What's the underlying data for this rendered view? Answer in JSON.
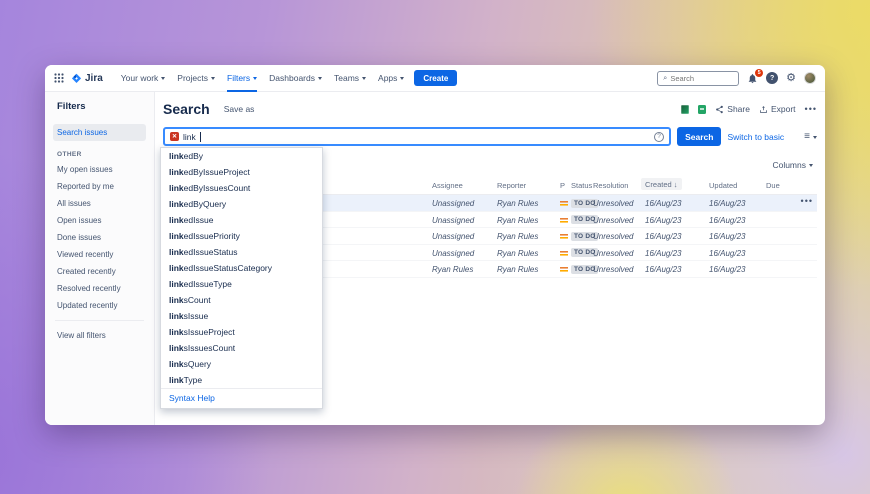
{
  "nav": {
    "brand": "Jira",
    "items": [
      {
        "label": "Your work",
        "active": false
      },
      {
        "label": "Projects",
        "active": false
      },
      {
        "label": "Filters",
        "active": true
      },
      {
        "label": "Dashboards",
        "active": false
      },
      {
        "label": "Teams",
        "active": false
      },
      {
        "label": "Apps",
        "active": false
      }
    ],
    "create_label": "Create",
    "search_placeholder": "Search",
    "notification_count": "5",
    "help_glyph": "?"
  },
  "sidebar": {
    "title": "Filters",
    "selected_item": "Search issues",
    "section_label": "OTHER",
    "items": [
      "My open issues",
      "Reported by me",
      "All issues",
      "Open issues",
      "Done issues",
      "Viewed recently",
      "Created recently",
      "Resolved recently",
      "Updated recently"
    ],
    "footer_item": "View all filters"
  },
  "header": {
    "title": "Search",
    "save_as": "Save as",
    "share": "Share",
    "export": "Export",
    "more": "•••"
  },
  "jql": {
    "value": "link",
    "search_button": "Search",
    "switch_label": "Switch to basic"
  },
  "autocomplete": {
    "prefix": "link",
    "items": [
      "linkedBy",
      "linkedByIssueProject",
      "linkedByIssuesCount",
      "linkedByQuery",
      "linkedIssue",
      "linkedIssuePriority",
      "linkedIssueStatus",
      "linkedIssueStatusCategory",
      "linkedIssueType",
      "linksCount",
      "linksIssue",
      "linksIssueProject",
      "linksIssuesCount",
      "linksQuery",
      "linkType"
    ],
    "footer": "Syntax Help"
  },
  "table": {
    "columns_label": "Columns",
    "headers": [
      "Assignee",
      "Reporter",
      "P",
      "Status",
      "Resolution",
      "Created",
      "Updated",
      "Due"
    ],
    "sorted_header": "Created",
    "sort_arrow": "↓",
    "row_menu": "•••",
    "rows": [
      {
        "selected": true,
        "assignee": "Unassigned",
        "reporter": "Ryan Rules",
        "priority": "medium",
        "status": "TO DO",
        "resolution": "Unresolved",
        "created": "16/Aug/23",
        "updated": "16/Aug/23",
        "due": ""
      },
      {
        "selected": false,
        "assignee": "Unassigned",
        "reporter": "Ryan Rules",
        "priority": "medium",
        "status": "TO DO",
        "resolution": "Unresolved",
        "created": "16/Aug/23",
        "updated": "16/Aug/23",
        "due": ""
      },
      {
        "selected": false,
        "assignee": "Unassigned",
        "reporter": "Ryan Rules",
        "priority": "medium",
        "status": "TO DO",
        "resolution": "Unresolved",
        "created": "16/Aug/23",
        "updated": "16/Aug/23",
        "due": ""
      },
      {
        "selected": false,
        "assignee": "Unassigned",
        "reporter": "Ryan Rules",
        "priority": "medium",
        "status": "TO DO",
        "resolution": "Unresolved",
        "created": "16/Aug/23",
        "updated": "16/Aug/23",
        "due": ""
      },
      {
        "selected": false,
        "assignee": "Ryan Rules",
        "reporter": "Ryan Rules",
        "priority": "medium",
        "status": "TO DO",
        "resolution": "Unresolved",
        "created": "16/Aug/23",
        "updated": "16/Aug/23",
        "due": ""
      }
    ]
  }
}
